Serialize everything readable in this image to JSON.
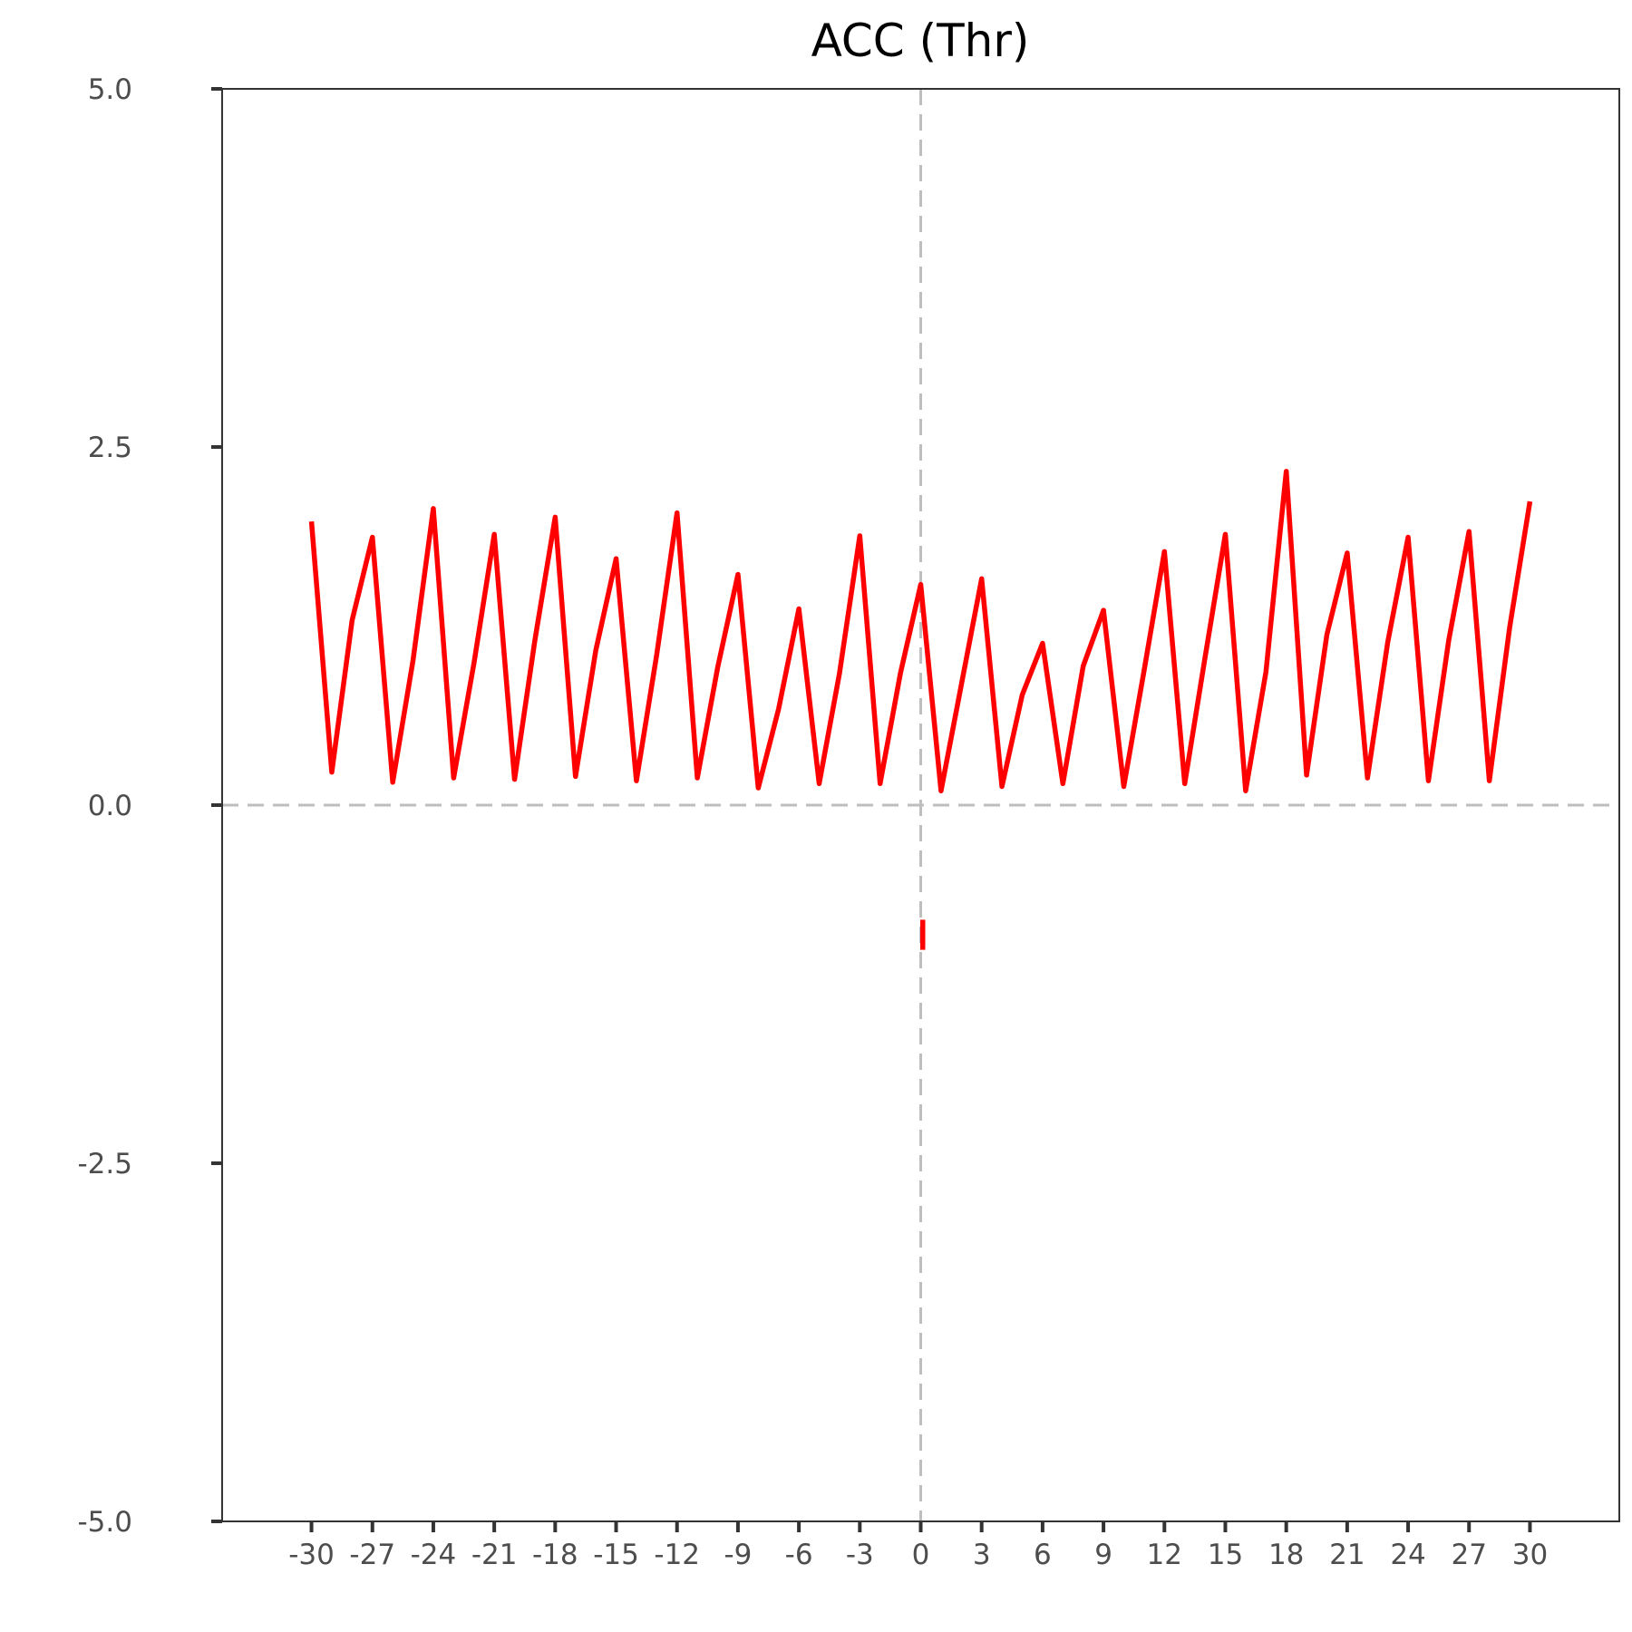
{
  "chart_data": {
    "type": "line",
    "title": "ACC (Thr)",
    "xlabel": "",
    "ylabel": "",
    "xlim": [
      -34.4,
      34.4
    ],
    "ylim": [
      -5.0,
      5.0
    ],
    "x_ticks": [
      -30,
      -27,
      -24,
      -21,
      -18,
      -15,
      -12,
      -9,
      -6,
      -3,
      0,
      3,
      6,
      9,
      12,
      15,
      18,
      21,
      24,
      27,
      30
    ],
    "x_tick_labels": [
      "-30",
      "-27",
      "-24",
      "-21",
      "-18",
      "-15",
      "-12",
      "-9",
      "-6",
      "-3",
      "0",
      "3",
      "6",
      "9",
      "12",
      "15",
      "18",
      "21",
      "24",
      "27",
      "30"
    ],
    "y_ticks": [
      5.0,
      2.5,
      0.0,
      -2.5,
      -5.0
    ],
    "y_tick_labels": [
      "5.0",
      "2.5",
      "0.0",
      "-2.5",
      "-5.0"
    ],
    "grid": false,
    "legend": "none",
    "reference_lines": {
      "x": 0,
      "y": 0,
      "style": "dashed",
      "color": "#bebebe"
    },
    "series": [
      {
        "color": "#ff0000",
        "x": [
          -30,
          -29,
          -28,
          -27,
          -26,
          -25,
          -24,
          -23,
          -22,
          -21,
          -20,
          -19,
          -18,
          -17,
          -16,
          -15,
          -14,
          -13,
          -12,
          -11,
          -10,
          -9,
          -8,
          -7,
          -6,
          -5,
          -4,
          -3,
          -2,
          -1,
          0,
          1,
          2,
          3,
          4,
          5,
          6,
          7,
          8,
          9,
          10,
          11,
          12,
          13,
          14,
          15,
          16,
          17,
          18,
          19,
          20,
          21,
          22,
          23,
          24,
          25,
          26,
          27,
          28,
          29,
          30
        ],
        "y": [
          1.98,
          0.23,
          1.29,
          1.87,
          0.16,
          1.01,
          2.07,
          0.19,
          0.99,
          1.89,
          0.18,
          1.15,
          2.01,
          0.2,
          1.08,
          1.72,
          0.17,
          1.05,
          2.04,
          0.19,
          0.96,
          1.61,
          0.12,
          0.67,
          1.37,
          0.15,
          0.92,
          1.88,
          0.15,
          0.92,
          1.54,
          0.1,
          0.84,
          1.58,
          0.13,
          0.77,
          1.13,
          0.15,
          0.97,
          1.36,
          0.13,
          0.94,
          1.77,
          0.15,
          1.03,
          1.89,
          0.1,
          0.93,
          2.33,
          0.21,
          1.19,
          1.76,
          0.19,
          1.14,
          1.87,
          0.17,
          1.15,
          1.91,
          0.17,
          1.24,
          2.12
        ]
      },
      {
        "color": "#ff0000",
        "x": [
          0.1,
          0.1
        ],
        "y": [
          -0.8,
          -1.01
        ]
      }
    ]
  }
}
